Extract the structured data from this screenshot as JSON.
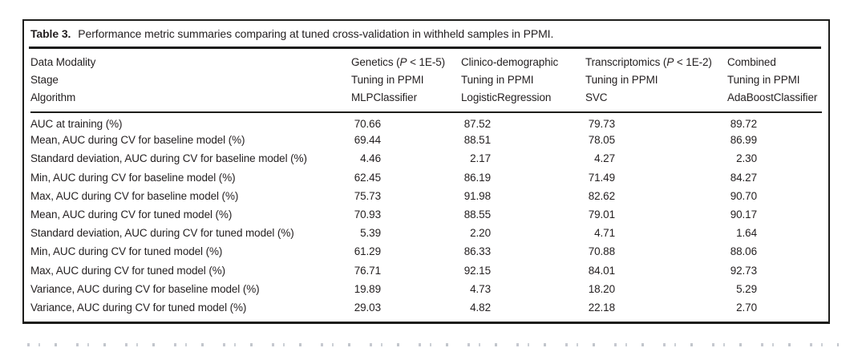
{
  "table": {
    "title_label": "Table 3.",
    "title_text": "Performance metric summaries comparing at tuned cross-validation in withheld samples in PPMI.",
    "header": {
      "row_labels": [
        "Data Modality",
        "Stage",
        "Algorithm"
      ],
      "columns": [
        {
          "modality_prefix": "Genetics (",
          "modality_italic": "P",
          "modality_suffix": " < 1E-5)",
          "stage": "Tuning in PPMI",
          "algorithm": "MLPClassifier"
        },
        {
          "modality_prefix": "Clinico-demographic",
          "modality_italic": "",
          "modality_suffix": "",
          "stage": "Tuning in PPMI",
          "algorithm": "LogisticRegression"
        },
        {
          "modality_prefix": "Transcriptomics (",
          "modality_italic": "P",
          "modality_suffix": " < 1E-2)",
          "stage": "Tuning in PPMI",
          "algorithm": "SVC"
        },
        {
          "modality_prefix": "Combined",
          "modality_italic": "",
          "modality_suffix": "",
          "stage": "Tuning in PPMI",
          "algorithm": "AdaBoostClassifier"
        }
      ]
    },
    "rows": [
      {
        "label": "AUC at training (%)",
        "values": [
          "70.66",
          "87.52",
          "79.73",
          "89.72"
        ]
      },
      {
        "label": "Mean, AUC during CV for baseline model (%)",
        "values": [
          "69.44",
          "88.51",
          "78.05",
          "86.99"
        ]
      },
      {
        "label": "Standard deviation, AUC during CV for baseline model (%)",
        "values": [
          "4.46",
          "2.17",
          "4.27",
          "2.30"
        ]
      },
      {
        "label": "Min, AUC during CV for baseline model (%)",
        "values": [
          "62.45",
          "86.19",
          "71.49",
          "84.27"
        ]
      },
      {
        "label": "Max, AUC during CV for baseline model (%)",
        "values": [
          "75.73",
          "91.98",
          "82.62",
          "90.70"
        ]
      },
      {
        "label": "Mean, AUC during CV for tuned model (%)",
        "values": [
          "70.93",
          "88.55",
          "79.01",
          "90.17"
        ]
      },
      {
        "label": "Standard deviation, AUC during CV for tuned model (%)",
        "values": [
          "5.39",
          "2.20",
          "4.71",
          "1.64"
        ]
      },
      {
        "label": "Min, AUC during CV for tuned model (%)",
        "values": [
          "61.29",
          "86.33",
          "70.88",
          "88.06"
        ]
      },
      {
        "label": "Max, AUC during CV for tuned model (%)",
        "values": [
          "76.71",
          "92.15",
          "84.01",
          "92.73"
        ]
      },
      {
        "label": "Variance, AUC during CV for baseline model (%)",
        "values": [
          "19.89",
          "4.73",
          "18.20",
          "5.29"
        ]
      },
      {
        "label": "Variance, AUC during CV for tuned model (%)",
        "values": [
          "29.03",
          "4.82",
          "22.18",
          "2.70"
        ]
      }
    ],
    "colors": {
      "text": "#231f20",
      "border": "#1d1d1b",
      "background": "#ffffff"
    }
  },
  "chart_data": {
    "type": "table",
    "title": "Table 3. Performance metric summaries comparing at tuned cross-validation in withheld samples in PPMI.",
    "categories": [
      "AUC at training (%)",
      "Mean, AUC during CV for baseline model (%)",
      "Standard deviation, AUC during CV for baseline model (%)",
      "Min, AUC during CV for baseline model (%)",
      "Max, AUC during CV for baseline model (%)",
      "Mean, AUC during CV for tuned model (%)",
      "Standard deviation, AUC during CV for tuned model (%)",
      "Min, AUC during CV for tuned model (%)",
      "Max, AUC during CV for tuned model (%)",
      "Variance, AUC during CV for baseline model (%)",
      "Variance, AUC during CV for tuned model (%)"
    ],
    "series": [
      {
        "name": "Genetics (P < 1E-5) / Tuning in PPMI / MLPClassifier",
        "values": [
          70.66,
          69.44,
          4.46,
          62.45,
          75.73,
          70.93,
          5.39,
          61.29,
          76.71,
          19.89,
          29.03
        ]
      },
      {
        "name": "Clinico-demographic / Tuning in PPMI / LogisticRegression",
        "values": [
          87.52,
          88.51,
          2.17,
          86.19,
          91.98,
          88.55,
          2.2,
          86.33,
          92.15,
          4.73,
          4.82
        ]
      },
      {
        "name": "Transcriptomics (P < 1E-2) / Tuning in PPMI / SVC",
        "values": [
          79.73,
          78.05,
          4.27,
          71.49,
          82.62,
          79.01,
          4.71,
          70.88,
          84.01,
          18.2,
          22.18
        ]
      },
      {
        "name": "Combined / Tuning in PPMI / AdaBoostClassifier",
        "values": [
          89.72,
          86.99,
          2.3,
          84.27,
          90.7,
          90.17,
          1.64,
          88.06,
          92.73,
          5.29,
          2.7
        ]
      }
    ]
  }
}
